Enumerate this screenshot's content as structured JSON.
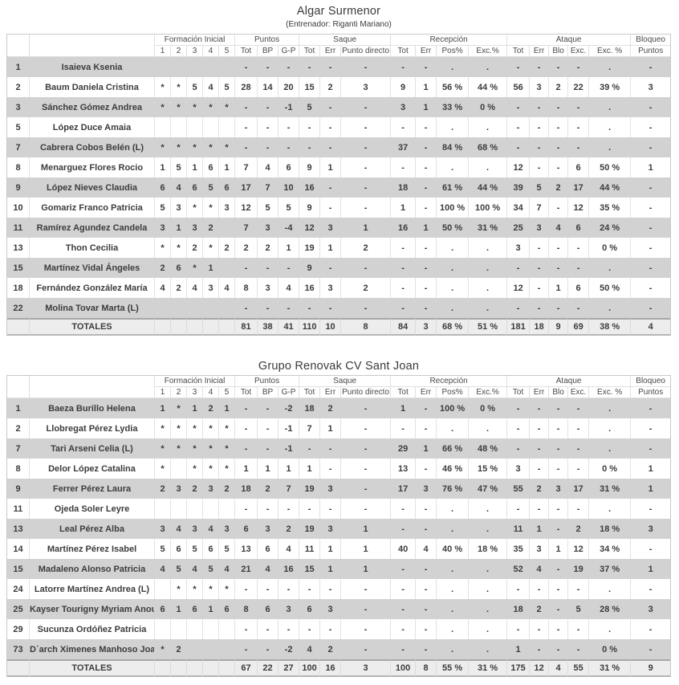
{
  "page": {
    "description": "Volleyball match statistics report with two team tables"
  },
  "colors": {
    "row_stripe": "#d2d2d2",
    "row_plain": "#ffffff",
    "totals_row": "#ededed",
    "border_light": "#e0e0e0",
    "border_outer": "#c9c9c9",
    "text": "#3c3c3c"
  },
  "columns": {
    "number_header": "",
    "name_header": "",
    "widths": [
      28,
      156,
      20,
      20,
      20,
      20,
      20,
      28,
      26,
      26,
      26,
      26,
      62,
      31,
      26,
      40,
      48,
      28,
      24,
      24,
      26,
      52,
      49
    ],
    "groups": [
      {
        "label": "Formación Inicial",
        "span": 5
      },
      {
        "label": "Puntos",
        "span": 3
      },
      {
        "label": "Saque",
        "span": 3
      },
      {
        "label": "Recepción",
        "span": 4
      },
      {
        "label": "Ataque",
        "span": 5
      },
      {
        "label": "Bloqueo",
        "span": 1
      }
    ],
    "sub": [
      "1",
      "2",
      "3",
      "4",
      "5",
      "Tot",
      "BP",
      "G-P",
      "Tot",
      "Err",
      "Punto directo",
      "Tot",
      "Err",
      "Pos%",
      "Exc.%",
      "Tot",
      "Err",
      "Blo",
      "Exc.",
      "Exc. %",
      "Puntos"
    ]
  },
  "tables": [
    {
      "title": "Algar Surmenor",
      "subtitle": "(Entrenador: Riganti Mariano)",
      "rows": [
        {
          "num": "1",
          "name": "Isaieva Ksenia",
          "stats": [
            "",
            "",
            "",
            "",
            "",
            "-",
            "-",
            "-",
            "-",
            "-",
            "-",
            "-",
            "-",
            ".",
            ".",
            "-",
            "-",
            "-",
            "-",
            ".",
            "-"
          ]
        },
        {
          "num": "2",
          "name": "Baum Daniela Cristina",
          "stats": [
            "*",
            "*",
            "5",
            "4",
            "5",
            "28",
            "14",
            "20",
            "15",
            "2",
            "3",
            "9",
            "1",
            "56 %",
            "44 %",
            "56",
            "3",
            "2",
            "22",
            "39 %",
            "3"
          ]
        },
        {
          "num": "3",
          "name": "Sánchez Gómez Andrea",
          "stats": [
            "*",
            "*",
            "*",
            "*",
            "*",
            "-",
            "-",
            "-1",
            "5",
            "-",
            "-",
            "3",
            "1",
            "33 %",
            "0 %",
            "-",
            "-",
            "-",
            "-",
            ".",
            "-"
          ]
        },
        {
          "num": "5",
          "name": "López Duce Amaia",
          "stats": [
            "",
            "",
            "",
            "",
            "",
            "-",
            "-",
            "-",
            "-",
            "-",
            "-",
            "-",
            "-",
            ".",
            ".",
            "-",
            "-",
            "-",
            "-",
            ".",
            "-"
          ]
        },
        {
          "num": "7",
          "name": "Cabrera Cobos Belén (L)",
          "stats": [
            "*",
            "*",
            "*",
            "*",
            "*",
            "-",
            "-",
            "-",
            "-",
            "-",
            "-",
            "37",
            "-",
            "84 %",
            "68 %",
            "-",
            "-",
            "-",
            "-",
            ".",
            "-"
          ]
        },
        {
          "num": "8",
          "name": "Menarguez Flores Rocio",
          "stats": [
            "1",
            "5",
            "1",
            "6",
            "1",
            "7",
            "4",
            "6",
            "9",
            "1",
            "-",
            "-",
            "-",
            ".",
            ".",
            "12",
            "-",
            "-",
            "6",
            "50 %",
            "1"
          ]
        },
        {
          "num": "9",
          "name": "López Nieves Claudia",
          "stats": [
            "6",
            "4",
            "6",
            "5",
            "6",
            "17",
            "7",
            "10",
            "16",
            "-",
            "-",
            "18",
            "-",
            "61 %",
            "44 %",
            "39",
            "5",
            "2",
            "17",
            "44 %",
            "-"
          ]
        },
        {
          "num": "10",
          "name": "Gomariz Franco Patricia",
          "stats": [
            "5",
            "3",
            "*",
            "*",
            "3",
            "12",
            "5",
            "5",
            "9",
            "-",
            "-",
            "1",
            "-",
            "100 %",
            "100 %",
            "34",
            "7",
            "-",
            "12",
            "35 %",
            "-"
          ]
        },
        {
          "num": "11",
          "name": "Ramírez Agundez Candela",
          "stats": [
            "3",
            "1",
            "3",
            "2",
            "",
            "7",
            "3",
            "-4",
            "12",
            "3",
            "1",
            "16",
            "1",
            "50 %",
            "31 %",
            "25",
            "3",
            "4",
            "6",
            "24 %",
            "-"
          ]
        },
        {
          "num": "13",
          "name": "Thon Cecilia",
          "stats": [
            "*",
            "*",
            "2",
            "*",
            "2",
            "2",
            "2",
            "1",
            "19",
            "1",
            "2",
            "-",
            "-",
            ".",
            ".",
            "3",
            "-",
            "-",
            "-",
            "0 %",
            "-"
          ]
        },
        {
          "num": "15",
          "name": "Martínez Vidal Ángeles",
          "stats": [
            "2",
            "6",
            "*",
            "1",
            "",
            "-",
            "-",
            "-",
            "9",
            "-",
            "-",
            "-",
            "-",
            ".",
            ".",
            "-",
            "-",
            "-",
            "-",
            ".",
            "-"
          ]
        },
        {
          "num": "18",
          "name": "Fernández González María",
          "stats": [
            "4",
            "2",
            "4",
            "3",
            "4",
            "8",
            "3",
            "4",
            "16",
            "3",
            "2",
            "-",
            "-",
            ".",
            ".",
            "12",
            "-",
            "1",
            "6",
            "50 %",
            "-"
          ]
        },
        {
          "num": "22",
          "name": "Molina Tovar Marta (L)",
          "stats": [
            "",
            "",
            "",
            "",
            "",
            "-",
            "-",
            "-",
            "-",
            "-",
            "-",
            "-",
            "-",
            ".",
            ".",
            "-",
            "-",
            "-",
            "-",
            ".",
            "-"
          ]
        }
      ],
      "totals": {
        "label": "TOTALES",
        "stats": [
          "",
          "",
          "",
          "",
          "",
          "81",
          "38",
          "41",
          "110",
          "10",
          "8",
          "84",
          "3",
          "68 %",
          "51 %",
          "181",
          "18",
          "9",
          "69",
          "38 %",
          "4"
        ]
      }
    },
    {
      "title": "Grupo Renovak CV Sant Joan",
      "subtitle": "",
      "rows": [
        {
          "num": "1",
          "name": "Baeza Burillo Helena",
          "stats": [
            "1",
            "*",
            "1",
            "2",
            "1",
            "-",
            "-",
            "-2",
            "18",
            "2",
            "-",
            "1",
            "-",
            "100 %",
            "0 %",
            "-",
            "-",
            "-",
            "-",
            ".",
            "-"
          ]
        },
        {
          "num": "2",
          "name": "Llobregat Pérez Lydia",
          "stats": [
            "*",
            "*",
            "*",
            "*",
            "*",
            "-",
            "-",
            "-1",
            "7",
            "1",
            "-",
            "-",
            "-",
            ".",
            ".",
            "-",
            "-",
            "-",
            "-",
            ".",
            "-"
          ]
        },
        {
          "num": "7",
          "name": "Tari Arseni Celia (L)",
          "stats": [
            "*",
            "*",
            "*",
            "*",
            "*",
            "-",
            "-",
            "-1",
            "-",
            "-",
            "-",
            "29",
            "1",
            "66 %",
            "48 %",
            "-",
            "-",
            "-",
            "-",
            ".",
            "-"
          ]
        },
        {
          "num": "8",
          "name": "Delor López Catalina",
          "stats": [
            "*",
            "",
            "*",
            "*",
            "*",
            "1",
            "1",
            "1",
            "1",
            "-",
            "-",
            "13",
            "-",
            "46 %",
            "15 %",
            "3",
            "-",
            "-",
            "-",
            "0 %",
            "1"
          ]
        },
        {
          "num": "9",
          "name": "Ferrer Pérez Laura",
          "stats": [
            "2",
            "3",
            "2",
            "3",
            "2",
            "18",
            "2",
            "7",
            "19",
            "3",
            "-",
            "17",
            "3",
            "76 %",
            "47 %",
            "55",
            "2",
            "3",
            "17",
            "31 %",
            "1"
          ]
        },
        {
          "num": "11",
          "name": "Ojeda Soler Leyre",
          "stats": [
            "",
            "",
            "",
            "",
            "",
            "-",
            "-",
            "-",
            "-",
            "-",
            "-",
            "-",
            "-",
            ".",
            ".",
            "-",
            "-",
            "-",
            "-",
            ".",
            "-"
          ]
        },
        {
          "num": "13",
          "name": "Leal Pérez Alba",
          "stats": [
            "3",
            "4",
            "3",
            "4",
            "3",
            "6",
            "3",
            "2",
            "19",
            "3",
            "1",
            "-",
            "-",
            ".",
            ".",
            "11",
            "1",
            "-",
            "2",
            "18 %",
            "3"
          ]
        },
        {
          "num": "14",
          "name": "Martínez Pérez Isabel",
          "stats": [
            "5",
            "6",
            "5",
            "6",
            "5",
            "13",
            "6",
            "4",
            "11",
            "1",
            "1",
            "40",
            "4",
            "40 %",
            "18 %",
            "35",
            "3",
            "1",
            "12",
            "34 %",
            "-"
          ]
        },
        {
          "num": "15",
          "name": "Madaleno Alonso Patricia",
          "stats": [
            "4",
            "5",
            "4",
            "5",
            "4",
            "21",
            "4",
            "16",
            "15",
            "1",
            "1",
            "-",
            "-",
            ".",
            ".",
            "52",
            "4",
            "-",
            "19",
            "37 %",
            "1"
          ]
        },
        {
          "num": "24",
          "name": "Latorre Martínez Andrea (L)",
          "stats": [
            "",
            "*",
            "*",
            "*",
            "*",
            "-",
            "-",
            "-",
            "-",
            "-",
            "-",
            "-",
            "-",
            ".",
            ".",
            "-",
            "-",
            "-",
            "-",
            ".",
            "-"
          ]
        },
        {
          "num": "25",
          "name": "Kayser Tourigny Myriam Anouk",
          "stats": [
            "6",
            "1",
            "6",
            "1",
            "6",
            "8",
            "6",
            "3",
            "6",
            "3",
            "-",
            "-",
            "-",
            ".",
            ".",
            "18",
            "2",
            "-",
            "5",
            "28 %",
            "3"
          ]
        },
        {
          "num": "29",
          "name": "Sucunza Ordóñez Patricia",
          "stats": [
            "",
            "",
            "",
            "",
            "",
            "-",
            "-",
            "-",
            "-",
            "-",
            "-",
            "-",
            "-",
            ".",
            ".",
            "-",
            "-",
            "-",
            "-",
            ".",
            "-"
          ]
        },
        {
          "num": "73",
          "name": "D´arch Ximenes Manhoso Joana",
          "stats": [
            "*",
            "2",
            "",
            "",
            "",
            "-",
            "-",
            "-2",
            "4",
            "2",
            "-",
            "-",
            "-",
            ".",
            ".",
            "1",
            "-",
            "-",
            "-",
            "0 %",
            "-"
          ]
        }
      ],
      "totals": {
        "label": "TOTALES",
        "stats": [
          "",
          "",
          "",
          "",
          "",
          "67",
          "22",
          "27",
          "100",
          "16",
          "3",
          "100",
          "8",
          "55 %",
          "31 %",
          "175",
          "12",
          "4",
          "55",
          "31 %",
          "9"
        ]
      }
    }
  ]
}
